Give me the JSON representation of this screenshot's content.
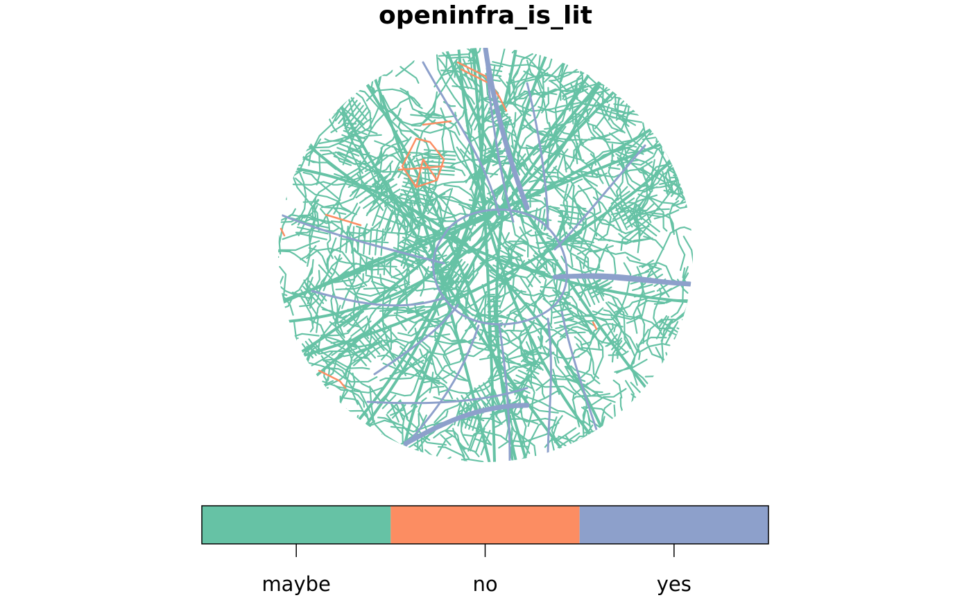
{
  "title": "openinfra_is_lit",
  "legend": {
    "categories": [
      {
        "label": "maybe",
        "color": "#66C2A5"
      },
      {
        "label": "no",
        "color": "#FC8D62"
      },
      {
        "label": "yes",
        "color": "#8DA0CB"
      }
    ]
  },
  "map": {
    "shape": "circle",
    "dominant_category": "maybe",
    "description_colors": {
      "maybe": "#66C2A5",
      "no": "#FC8D62",
      "yes": "#8DA0CB"
    }
  }
}
